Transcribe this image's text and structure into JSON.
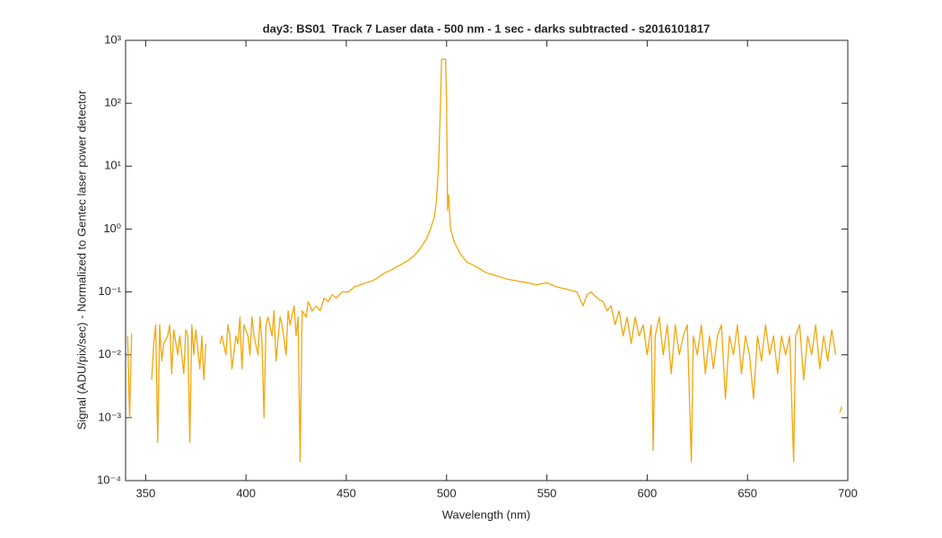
{
  "chart_data": {
    "type": "line",
    "title": "day3: BS01  Track 7 Laser data - 500 nm - 1 sec - darks subtracted - s2016101817",
    "xlabel": "Wavelength (nm)",
    "ylabel": "Signal (ADU/pix/sec) - Normalized to Gentec laser power detector",
    "xlim": [
      340,
      700
    ],
    "xticks": [
      350,
      400,
      450,
      500,
      550,
      600,
      650,
      700
    ],
    "ylim": [
      0.0001,
      1000
    ],
    "yscale": "log",
    "yticks": [
      {
        "value": 0.0001,
        "label": "10⁻⁴"
      },
      {
        "value": 0.001,
        "label": "10⁻³"
      },
      {
        "value": 0.01,
        "label": "10⁻²"
      },
      {
        "value": 0.1,
        "label": "10⁻¹"
      },
      {
        "value": 1,
        "label": "10⁰"
      },
      {
        "value": 10,
        "label": "10¹"
      },
      {
        "value": 100,
        "label": "10²"
      },
      {
        "value": 1000,
        "label": "10³"
      }
    ],
    "x": [
      341,
      342,
      343,
      345,
      353,
      354,
      355,
      356,
      357,
      358,
      359,
      361,
      362,
      363,
      364,
      366,
      367,
      369,
      370,
      371,
      372,
      373,
      374,
      375,
      377,
      378,
      379,
      380,
      381,
      387,
      388,
      390,
      391,
      392,
      393,
      395,
      396,
      397,
      398,
      399,
      401,
      402,
      403,
      404,
      406,
      407,
      408,
      409,
      410,
      411,
      413,
      414,
      415,
      417,
      418,
      420,
      421,
      422,
      424,
      425,
      426,
      427,
      428,
      430,
      431,
      433,
      435,
      437,
      439,
      441,
      443,
      445,
      448,
      451,
      454,
      457,
      460,
      463,
      466,
      469,
      472,
      475,
      478,
      481,
      484,
      487,
      490,
      492,
      494,
      495,
      496,
      497,
      497.5,
      499.5,
      500,
      500.5,
      501,
      502,
      504,
      507,
      510,
      515,
      520,
      525,
      530,
      535,
      540,
      545,
      550,
      555,
      560,
      565,
      568,
      570,
      572,
      575,
      578,
      580,
      582,
      584,
      586,
      588,
      590,
      592,
      594,
      596,
      598,
      600,
      602,
      603,
      604,
      606,
      608,
      610,
      612,
      614,
      616,
      618,
      620,
      622,
      623,
      625,
      627,
      629,
      631,
      633,
      635,
      637,
      639,
      641,
      643,
      645,
      647,
      649,
      651,
      653,
      655,
      657,
      659,
      661,
      663,
      665,
      667,
      669,
      671,
      673,
      674,
      676,
      678,
      680,
      682,
      684,
      686,
      688,
      690,
      692,
      694,
      695,
      696,
      697
    ],
    "series": [
      {
        "name": "signal",
        "color": "#f4a60a",
        "values": [
          0.02,
          0.001,
          0.022,
          null,
          0.004,
          0.015,
          0.03,
          0.0004,
          0.03,
          0.008,
          0.015,
          0.02,
          0.03,
          0.005,
          0.025,
          0.01,
          0.02,
          0.005,
          0.025,
          0.02,
          0.0004,
          0.03,
          0.01,
          0.025,
          0.006,
          0.02,
          0.004,
          0.015,
          null,
          0.015,
          0.02,
          0.01,
          0.03,
          0.02,
          0.006,
          0.02,
          0.015,
          0.04,
          0.006,
          0.03,
          0.02,
          0.01,
          0.04,
          0.02,
          0.01,
          0.04,
          0.015,
          0.001,
          0.03,
          0.04,
          0.02,
          0.05,
          0.008,
          0.04,
          0.03,
          0.01,
          0.05,
          0.03,
          0.06,
          0.02,
          0.04,
          0.0002,
          0.05,
          0.04,
          0.07,
          0.05,
          0.06,
          0.05,
          0.08,
          0.07,
          0.09,
          0.08,
          0.1,
          0.1,
          0.12,
          0.13,
          0.14,
          0.15,
          0.17,
          0.2,
          0.22,
          0.25,
          0.28,
          0.32,
          0.38,
          0.5,
          0.7,
          1.0,
          1.6,
          3,
          10,
          100,
          500,
          500,
          100,
          2,
          3.5,
          1,
          0.6,
          0.4,
          0.3,
          0.25,
          0.2,
          0.18,
          0.16,
          0.15,
          0.14,
          0.13,
          0.14,
          0.12,
          0.11,
          0.1,
          0.06,
          0.09,
          0.1,
          0.08,
          0.07,
          0.05,
          0.06,
          0.03,
          0.05,
          0.02,
          0.04,
          0.015,
          0.04,
          0.02,
          0.03,
          0.01,
          0.03,
          0.0003,
          0.02,
          0.04,
          0.01,
          0.03,
          0.005,
          0.03,
          0.01,
          0.02,
          0.03,
          0.0002,
          0.02,
          0.01,
          0.03,
          0.005,
          0.02,
          0.006,
          0.02,
          0.03,
          0.002,
          0.02,
          0.01,
          0.03,
          0.005,
          0.02,
          0.01,
          0.002,
          0.02,
          0.008,
          0.03,
          0.01,
          0.02,
          0.005,
          0.02,
          0.01,
          0.02,
          0.0002,
          0.02,
          0.03,
          0.004,
          0.02,
          0.01,
          0.03,
          0.006,
          0.02,
          0.008,
          0.025,
          0.01,
          null,
          0.0012,
          0.0015
        ]
      }
    ]
  }
}
